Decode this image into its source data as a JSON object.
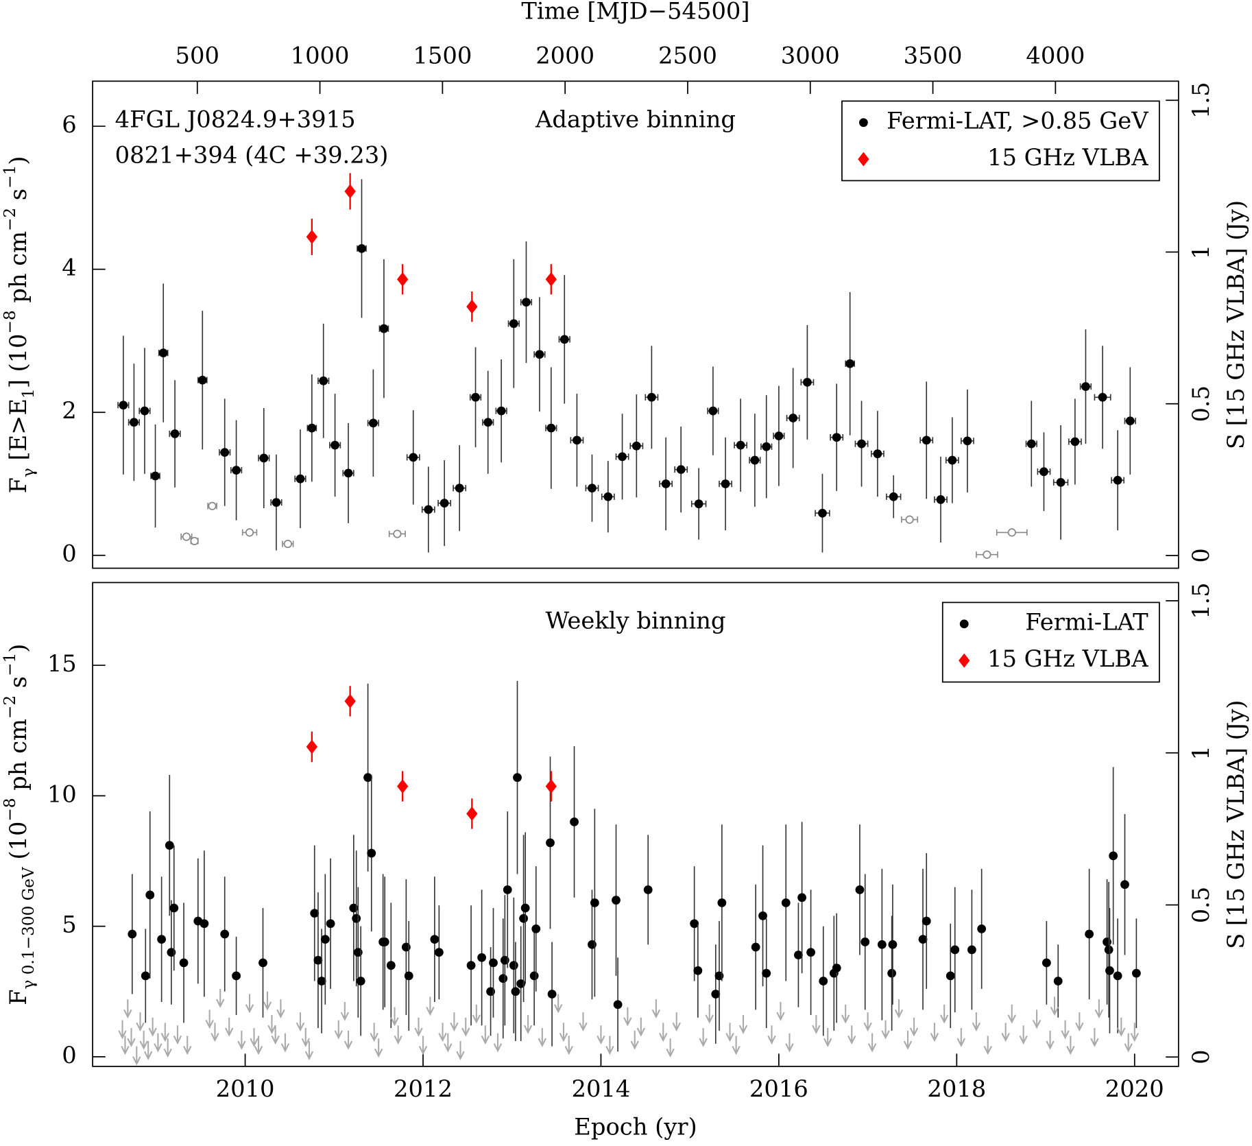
{
  "chart_data": [
    {
      "type": "scatter",
      "title": "Adaptive binning",
      "annotations": [
        {
          "text": "4FGL J0824.9+3915",
          "color": "#000000"
        },
        {
          "text": "0821+394 (4C +39.23)",
          "color": "#ff0000"
        }
      ],
      "x2label": "Time [MJD−54500]",
      "x2lim": [
        73,
        4502
      ],
      "x2ticks": [
        500,
        1000,
        1500,
        2000,
        2500,
        3000,
        3500,
        4000
      ],
      "xlim": [
        2008.285,
        2020.494
      ],
      "ylim": [
        -0.18,
        6.63
      ],
      "yticks": [
        0,
        2,
        4,
        6
      ],
      "ylabel": [
        {
          "text": "F"
        },
        {
          "text": "γ",
          "shift": "sub"
        },
        {
          "text": " [E>E"
        },
        {
          "text": "1",
          "shift": "sub"
        },
        {
          "text": "] (10"
        },
        {
          "text": "−8",
          "shift": "super"
        },
        {
          "text": " ph cm"
        },
        {
          "text": "−2",
          "shift": "super"
        },
        {
          "text": " s"
        },
        {
          "text": "−1",
          "shift": "super"
        },
        {
          "text": ")"
        }
      ],
      "y2lim": [
        -0.042,
        1.563
      ],
      "y2ticks": [
        0,
        0.5,
        1,
        1.5
      ],
      "y2label": "S [15 GHz VLBA] (Jy)",
      "y2color": "#ff0000",
      "legend": "upper right",
      "series": [
        {
          "name": "Fermi-LAT, >0.85 GeV",
          "color": "#000000",
          "marker": "circle",
          "x": [
            2008.63,
            2008.75,
            2008.87,
            2008.99,
            2009.08,
            2009.21,
            2009.52,
            2009.77,
            2009.9,
            2010.21,
            2010.35,
            2010.62,
            2010.75,
            2010.88,
            2011.01,
            2011.16,
            2011.31,
            2011.44,
            2011.56,
            2011.89,
            2012.06,
            2012.24,
            2012.41,
            2012.59,
            2012.73,
            2012.88,
            2013.02,
            2013.16,
            2013.31,
            2013.44,
            2013.59,
            2013.73,
            2013.9,
            2014.08,
            2014.24,
            2014.4,
            2014.57,
            2014.73,
            2014.9,
            2015.1,
            2015.26,
            2015.4,
            2015.57,
            2015.73,
            2015.86,
            2016.0,
            2016.16,
            2016.32,
            2016.49,
            2016.65,
            2016.8,
            2016.93,
            2017.11,
            2017.29,
            2017.66,
            2017.82,
            2017.95,
            2018.12,
            2018.84,
            2018.98,
            2019.17,
            2019.33,
            2019.45,
            2019.64,
            2019.81,
            2019.95
          ],
          "values": [
            2.1,
            1.86,
            2.02,
            1.11,
            2.83,
            1.7,
            2.45,
            1.44,
            1.19,
            1.36,
            0.74,
            1.07,
            1.78,
            2.44,
            1.54,
            1.15,
            4.29,
            1.85,
            3.17,
            1.37,
            0.64,
            0.73,
            0.94,
            2.21,
            1.86,
            2.02,
            3.24,
            3.54,
            2.81,
            1.78,
            3.02,
            1.61,
            0.94,
            0.82,
            1.38,
            1.53,
            2.21,
            1.0,
            1.2,
            0.72,
            2.02,
            1.0,
            1.54,
            1.33,
            1.52,
            1.67,
            1.92,
            2.42,
            0.59,
            1.65,
            2.68,
            1.56,
            1.42,
            0.82,
            1.61,
            0.78,
            1.33,
            1.6,
            1.56,
            1.17,
            1.02,
            1.59,
            2.36,
            2.21,
            1.05,
            1.88
          ],
          "yerr": [
            0.97,
            0.82,
            0.88,
            0.72,
            0.97,
            0.75,
            0.97,
            0.75,
            0.7,
            0.7,
            0.67,
            0.69,
            0.75,
            0.8,
            0.72,
            0.7,
            0.97,
            0.75,
            0.97,
            0.66,
            0.6,
            0.6,
            0.6,
            0.7,
            0.72,
            0.72,
            0.9,
            0.85,
            0.8,
            0.85,
            0.9,
            0.65,
            0.47,
            0.5,
            0.6,
            0.72,
            0.72,
            0.65,
            0.6,
            0.5,
            0.62,
            0.65,
            0.65,
            0.65,
            0.72,
            0.7,
            0.7,
            0.8,
            0.55,
            0.75,
            1.0,
            0.6,
            0.6,
            0.3,
            0.82,
            0.6,
            0.6,
            0.72,
            0.6,
            0.55,
            0.8,
            0.6,
            0.8,
            0.72,
            0.7,
            0.75
          ],
          "xerr": [
            0.06,
            0.06,
            0.06,
            0.05,
            0.05,
            0.06,
            0.05,
            0.06,
            0.06,
            0.06,
            0.06,
            0.06,
            0.05,
            0.06,
            0.06,
            0.06,
            0.05,
            0.06,
            0.05,
            0.07,
            0.07,
            0.07,
            0.07,
            0.06,
            0.06,
            0.06,
            0.06,
            0.06,
            0.06,
            0.06,
            0.06,
            0.07,
            0.07,
            0.07,
            0.07,
            0.07,
            0.07,
            0.07,
            0.07,
            0.08,
            0.06,
            0.07,
            0.07,
            0.06,
            0.06,
            0.06,
            0.07,
            0.07,
            0.08,
            0.07,
            0.05,
            0.07,
            0.07,
            0.08,
            0.07,
            0.07,
            0.07,
            0.07,
            0.06,
            0.07,
            0.08,
            0.07,
            0.06,
            0.09,
            0.07,
            0.06
          ]
        },
        {
          "color": "#888888",
          "marker": "open-circle",
          "x": [
            2009.34,
            2009.43,
            2009.63,
            2010.05,
            2010.48,
            2011.71,
            2017.47,
            2018.34,
            2018.62
          ],
          "values": [
            0.26,
            0.2,
            0.69,
            0.32,
            0.16,
            0.3,
            0.5,
            0.01,
            0.32
          ],
          "xerr": [
            0.06,
            0.04,
            0.05,
            0.08,
            0.06,
            0.09,
            0.09,
            0.12,
            0.17
          ]
        },
        {
          "name": "15 GHz VLBA",
          "color": "#ff0000",
          "marker": "diamond",
          "axis": "y2",
          "x": [
            2010.75,
            2011.18,
            2011.77,
            2012.55,
            2013.44
          ],
          "values": [
            1.05,
            1.2,
            0.91,
            0.82,
            0.91
          ],
          "yerr": [
            0.06,
            0.06,
            0.05,
            0.05,
            0.05
          ]
        }
      ]
    },
    {
      "type": "scatter",
      "title": "Weekly binning",
      "xlabel": "Epoch (yr)",
      "xlim": [
        2008.285,
        2020.494
      ],
      "xticks": [
        2010,
        2012,
        2014,
        2016,
        2018,
        2020
      ],
      "ylim": [
        -0.37,
        18.17
      ],
      "yticks": [
        0,
        5,
        10,
        15
      ],
      "ylabel": [
        {
          "text": "F"
        },
        {
          "text": "γ 0.1−300 GeV",
          "shift": "sub"
        },
        {
          "text": " (10"
        },
        {
          "text": "−8",
          "shift": "super"
        },
        {
          "text": " ph cm"
        },
        {
          "text": "−2",
          "shift": "super"
        },
        {
          "text": " s"
        },
        {
          "text": "−1",
          "shift": "super"
        },
        {
          "text": ")"
        }
      ],
      "y2lim": [
        -0.031,
        1.56
      ],
      "y2ticks": [
        0,
        0.5,
        1,
        1.5
      ],
      "y2label": "S [15 GHz VLBA] (Jy)",
      "y2color": "#ff0000",
      "legend": "upper right",
      "series": [
        {
          "name": "Fermi-LAT",
          "color": "#000000",
          "marker": "circle",
          "x": [
            2008.73,
            2008.88,
            2008.93,
            2009.06,
            2009.15,
            2009.17,
            2009.2,
            2009.31,
            2009.47,
            2009.54,
            2009.77,
            2009.9,
            2010.2,
            2010.78,
            2010.82,
            2010.86,
            2010.9,
            2010.96,
            2011.22,
            2011.25,
            2011.27,
            2011.3,
            2011.38,
            2011.42,
            2011.55,
            2011.57,
            2011.64,
            2011.81,
            2011.84,
            2012.13,
            2012.18,
            2012.54,
            2012.66,
            2012.76,
            2012.79,
            2012.9,
            2012.92,
            2012.95,
            2013.02,
            2013.04,
            2013.06,
            2013.1,
            2013.13,
            2013.15,
            2013.25,
            2013.27,
            2013.43,
            2013.45,
            2013.7,
            2013.9,
            2013.93,
            2014.17,
            2014.19,
            2014.53,
            2015.05,
            2015.09,
            2015.29,
            2015.33,
            2015.36,
            2015.74,
            2015.82,
            2015.86,
            2016.08,
            2016.22,
            2016.26,
            2016.36,
            2016.5,
            2016.62,
            2016.65,
            2016.91,
            2016.97,
            2017.16,
            2017.27,
            2017.28,
            2017.62,
            2017.66,
            2017.93,
            2017.98,
            2018.17,
            2018.28,
            2019.01,
            2019.14,
            2019.49,
            2019.69,
            2019.71,
            2019.72,
            2019.76,
            2019.81,
            2019.89,
            2020.02
          ],
          "values": [
            4.7,
            3.1,
            6.2,
            4.5,
            8.1,
            4.0,
            5.7,
            3.6,
            5.2,
            5.1,
            4.7,
            3.1,
            3.6,
            5.5,
            3.7,
            2.9,
            4.5,
            5.1,
            5.7,
            5.3,
            4.0,
            2.9,
            10.7,
            7.8,
            4.4,
            4.4,
            3.5,
            4.2,
            3.1,
            4.5,
            4.0,
            3.5,
            3.8,
            2.5,
            3.6,
            3.0,
            3.7,
            6.4,
            3.5,
            2.5,
            10.7,
            2.8,
            5.3,
            5.7,
            3.1,
            4.9,
            8.2,
            2.4,
            9.0,
            4.3,
            5.9,
            6.0,
            2.0,
            6.4,
            5.1,
            3.3,
            2.4,
            3.1,
            5.9,
            4.2,
            5.4,
            3.2,
            5.9,
            3.9,
            6.1,
            4.0,
            2.9,
            3.2,
            3.4,
            6.4,
            4.4,
            4.3,
            3.2,
            4.3,
            4.5,
            5.2,
            3.1,
            4.1,
            4.1,
            4.9,
            3.6,
            2.9,
            4.7,
            4.4,
            4.1,
            3.3,
            7.7,
            3.1,
            6.6,
            3.2
          ],
          "yerr": [
            2.3,
            1.8,
            3.2,
            2.4,
            2.7,
            2.0,
            2.4,
            2.3,
            2.4,
            2.8,
            2.2,
            1.5,
            2.1,
            2.6,
            2.6,
            2.0,
            2.5,
            2.5,
            2.8,
            2.6,
            2.5,
            2.1,
            3.6,
            3.0,
            2.6,
            2.5,
            2.4,
            2.6,
            2.1,
            2.4,
            1.8,
            2.3,
            2.6,
            1.7,
            2.1,
            2.3,
            2.5,
            3.0,
            2.6,
            1.9,
            3.7,
            2.2,
            3.2,
            2.9,
            1.9,
            2.4,
            3.3,
            2.0,
            2.9,
            2.1,
            3.6,
            2.9,
            1.8,
            2.1,
            2.2,
            1.8,
            1.9,
            2.1,
            3.0,
            2.4,
            2.7,
            2.1,
            3.0,
            2.0,
            2.9,
            2.4,
            2.1,
            2.2,
            2.1,
            2.5,
            2.6,
            2.9,
            2.2,
            2.3,
            2.7,
            2.6,
            2.0,
            2.4,
            2.3,
            2.3,
            1.6,
            1.4,
            2.5,
            2.4,
            2.6,
            2.4,
            3.4,
            2.2,
            2.7,
            2.1
          ]
        },
        {
          "color": "#aaaaaa",
          "marker": "arrow",
          "x": [
            2008.62,
            2008.65,
            2008.68,
            2008.72,
            2008.78,
            2008.82,
            2008.86,
            2008.91,
            2008.96,
            2009.02,
            2009.1,
            2009.13,
            2009.24,
            2009.35,
            2009.6,
            2009.66,
            2009.72,
            2009.82,
            2009.96,
            2010.05,
            2010.1,
            2010.15,
            2010.25,
            2010.3,
            2010.34,
            2010.4,
            2010.45,
            2010.62,
            2010.68,
            2010.72,
            2011.05,
            2011.12,
            2011.16,
            2011.45,
            2011.5,
            2011.68,
            2011.72,
            2011.95,
            2012.0,
            2012.08,
            2012.22,
            2012.28,
            2012.35,
            2012.42,
            2012.48,
            2012.6,
            2012.7,
            2012.84,
            2013.18,
            2013.34,
            2013.52,
            2013.58,
            2013.64,
            2013.8,
            2014.0,
            2014.1,
            2014.3,
            2014.38,
            2014.45,
            2014.62,
            2014.7,
            2014.78,
            2014.85,
            2015.15,
            2015.22,
            2015.45,
            2015.52,
            2015.6,
            2015.92,
            2016.02,
            2016.12,
            2016.42,
            2016.55,
            2016.75,
            2016.82,
            2017.0,
            2017.05,
            2017.2,
            2017.35,
            2017.45,
            2017.52,
            2017.75,
            2017.86,
            2018.05,
            2018.22,
            2018.35,
            2018.55,
            2018.62,
            2018.75,
            2018.9,
            2019.05,
            2019.1,
            2019.22,
            2019.28,
            2019.38,
            2019.55,
            2019.6,
            2019.85,
            2019.93,
            2020.0
          ],
          "values": [
            1.4,
            0.8,
            2.2,
            1.1,
            0.4,
            1.7,
            1.0,
            0.6,
            1.5,
            0.9,
            1.3,
            0.7,
            1.2,
            0.8,
            1.8,
            1.3,
            2.6,
            1.5,
            1.0,
            2.4,
            1.1,
            0.8,
            2.5,
            1.6,
            1.2,
            2.2,
            0.9,
            1.7,
            1.1,
            0.6,
            1.4,
            2.1,
            1.0,
            1.3,
            0.7,
            1.9,
            1.2,
            1.5,
            0.8,
            2.3,
            1.3,
            0.9,
            1.7,
            0.6,
            1.5,
            2.0,
            1.2,
            0.9,
            1.6,
            1.1,
            2.4,
            1.3,
            0.8,
            1.7,
            1.2,
            0.8,
            1.9,
            1.0,
            1.5,
            2.2,
            1.3,
            0.7,
            1.7,
            1.1,
            2.0,
            1.3,
            0.8,
            1.6,
            1.2,
            2.1,
            0.9,
            1.6,
            1.1,
            2.0,
            1.2,
            1.7,
            0.9,
            1.4,
            2.2,
            1.0,
            1.5,
            1.3,
            2.0,
            1.1,
            1.7,
            0.8,
            1.3,
            2.0,
            1.2,
            1.8,
            1.0,
            2.3,
            1.4,
            0.8,
            1.7,
            1.1,
            2.2,
            1.5,
            0.9,
            1.3
          ]
        },
        {
          "name": "15 GHz VLBA",
          "color": "#ff0000",
          "marker": "diamond",
          "axis": "y2",
          "x": [
            2010.75,
            2011.18,
            2011.77,
            2012.55,
            2013.44
          ],
          "values": [
            1.02,
            1.17,
            0.89,
            0.8,
            0.89
          ],
          "yerr": [
            0.05,
            0.05,
            0.05,
            0.05,
            0.05
          ]
        }
      ]
    }
  ]
}
